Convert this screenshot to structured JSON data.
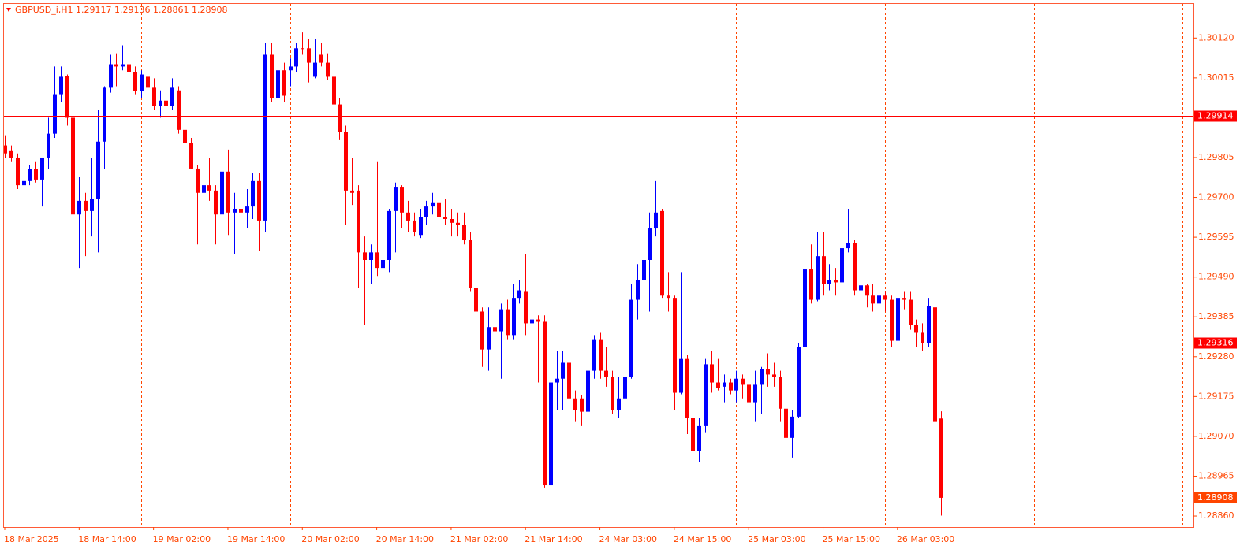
{
  "chart_data": {
    "type": "candlestick",
    "title": "GBPUSD_i,H1  1.29117 1.29136 1.28861 1.28908",
    "up_color": "#0000ff",
    "down_color": "#ff0000",
    "level_color": "#ff0000",
    "ylim": [
      1.28831,
      1.30212
    ],
    "yticks": [
      {
        "value": 1.3012,
        "label": "1.30120"
      },
      {
        "value": 1.30015,
        "label": "1.30015"
      },
      {
        "value": 1.29805,
        "label": "1.29805"
      },
      {
        "value": 1.297,
        "label": "1.29700"
      },
      {
        "value": 1.29595,
        "label": "1.29595"
      },
      {
        "value": 1.2949,
        "label": "1.29490"
      },
      {
        "value": 1.29385,
        "label": "1.29385"
      },
      {
        "value": 1.2928,
        "label": "1.29280"
      },
      {
        "value": 1.29175,
        "label": "1.29175"
      },
      {
        "value": 1.2907,
        "label": "1.29070"
      },
      {
        "value": 1.28965,
        "label": "1.28965"
      },
      {
        "value": 1.2886,
        "label": "1.28860"
      }
    ],
    "levels": [
      {
        "value": 1.29914,
        "label": "1.29914"
      },
      {
        "value": 1.29316,
        "label": "1.29316"
      }
    ],
    "price_label": {
      "value": 1.28908,
      "label": "1.28908"
    },
    "xtick_labels": [
      "18 Mar 2025",
      "18 Mar 14:00",
      "19 Mar 02:00",
      "19 Mar 14:00",
      "20 Mar 02:00",
      "20 Mar 14:00",
      "21 Mar 02:00",
      "21 Mar 14:00",
      "24 Mar 03:00",
      "24 Mar 15:00",
      "25 Mar 03:00",
      "25 Mar 15:00",
      "26 Mar 03:00"
    ],
    "values": [
      [
        1.29837,
        1.29864,
        1.29805,
        1.29816
      ],
      [
        1.29822,
        1.29837,
        1.29795,
        1.29805
      ],
      [
        1.29805,
        1.29816,
        1.29722,
        1.29732
      ],
      [
        1.29732,
        1.29764,
        1.29705,
        1.29743
      ],
      [
        1.29743,
        1.29785,
        1.29732,
        1.29774
      ],
      [
        1.29774,
        1.29795,
        1.29739,
        1.29747
      ],
      [
        1.29747,
        1.29805,
        1.29676,
        1.29805
      ],
      [
        1.29805,
        1.2991,
        1.29774,
        1.29868
      ],
      [
        1.29868,
        1.30045,
        1.29857,
        1.29972
      ],
      [
        1.29972,
        1.30045,
        1.29951,
        1.30018
      ],
      [
        1.3002,
        1.30024,
        1.29889,
        1.2991
      ],
      [
        1.2991,
        1.2992,
        1.29643,
        1.29655
      ],
      [
        1.29655,
        1.29753,
        1.29514,
        1.29691
      ],
      [
        1.29691,
        1.29712,
        1.29545,
        1.29664
      ],
      [
        1.29664,
        1.29805,
        1.29597,
        1.29697
      ],
      [
        1.29697,
        1.2993,
        1.29555,
        1.29847
      ],
      [
        1.29847,
        1.29993,
        1.29774,
        1.29989
      ],
      [
        1.29989,
        1.30076,
        1.29976,
        1.30051
      ],
      [
        1.30051,
        1.3008,
        1.29993,
        1.30045
      ],
      [
        1.30045,
        1.30101,
        1.30035,
        1.30051
      ],
      [
        1.30051,
        1.30072,
        1.29997,
        1.3003
      ],
      [
        1.3003,
        1.30045,
        1.29972,
        1.2998
      ],
      [
        1.2998,
        1.30035,
        1.29962,
        1.30024
      ],
      [
        1.30018,
        1.3003,
        1.29972,
        1.29989
      ],
      [
        1.29989,
        1.30014,
        1.2993,
        1.29941
      ],
      [
        1.29941,
        1.29982,
        1.2991,
        1.29955
      ],
      [
        1.29955,
        1.30014,
        1.29926,
        1.29941
      ],
      [
        1.29941,
        1.30014,
        1.2993,
        1.29989
      ],
      [
        1.29982,
        1.29993,
        1.29868,
        1.29878
      ],
      [
        1.29878,
        1.2991,
        1.29826,
        1.29843
      ],
      [
        1.29843,
        1.29857,
        1.29774,
        1.29776
      ],
      [
        1.29776,
        1.29785,
        1.29576,
        1.29712
      ],
      [
        1.29712,
        1.29816,
        1.2967,
        1.29732
      ],
      [
        1.29732,
        1.29805,
        1.29691,
        1.29718
      ],
      [
        1.29718,
        1.29732,
        1.29576,
        1.29655
      ],
      [
        1.29655,
        1.29826,
        1.29639,
        1.29768
      ],
      [
        1.29768,
        1.29826,
        1.29601,
        1.2966
      ],
      [
        1.2966,
        1.29712,
        1.29551,
        1.2967
      ],
      [
        1.2967,
        1.29691,
        1.29628,
        1.2966
      ],
      [
        1.2966,
        1.29722,
        1.29618,
        1.29676
      ],
      [
        1.29676,
        1.29764,
        1.29643,
        1.29743
      ],
      [
        1.29743,
        1.29764,
        1.2956,
        1.29639
      ],
      [
        1.29639,
        1.30107,
        1.29608,
        1.30076
      ],
      [
        1.30076,
        1.30107,
        1.29951,
        1.29962
      ],
      [
        1.29962,
        1.30072,
        1.29941,
        1.30035
      ],
      [
        1.30035,
        1.30055,
        1.29951,
        1.29968
      ],
      [
        1.30035,
        1.30066,
        1.29993,
        1.30045
      ],
      [
        1.30045,
        1.30107,
        1.3003,
        1.30093
      ],
      [
        1.30093,
        1.30135,
        1.30076,
        1.30091
      ],
      [
        1.30093,
        1.30118,
        1.30003,
        1.30055
      ],
      [
        1.30018,
        1.30118,
        1.30014,
        1.30055
      ],
      [
        1.30076,
        1.30107,
        1.30045,
        1.30055
      ],
      [
        1.30055,
        1.3008,
        1.3001,
        1.30018
      ],
      [
        1.30018,
        1.30035,
        1.2991,
        1.29945
      ],
      [
        1.29945,
        1.29962,
        1.29851,
        1.29872
      ],
      [
        1.29872,
        1.29889,
        1.29628,
        1.29718
      ],
      [
        1.29718,
        1.29805,
        1.2968,
        1.29712
      ],
      [
        1.29718,
        1.29732,
        1.29462,
        1.29555
      ],
      [
        1.29555,
        1.29597,
        1.29364,
        1.29535
      ],
      [
        1.29535,
        1.29576,
        1.29472,
        1.29555
      ],
      [
        1.29555,
        1.29795,
        1.29493,
        1.29514
      ],
      [
        1.29514,
        1.29597,
        1.29364,
        1.29535
      ],
      [
        1.29535,
        1.2967,
        1.29503,
        1.29664
      ],
      [
        1.29664,
        1.29739,
        1.29555,
        1.29728
      ],
      [
        1.29728,
        1.29732,
        1.29618,
        1.2966
      ],
      [
        1.2966,
        1.29691,
        1.29608,
        1.29639
      ],
      [
        1.29639,
        1.2966,
        1.29597,
        1.29608
      ],
      [
        1.29601,
        1.2967,
        1.29593,
        1.29649
      ],
      [
        1.29649,
        1.29691,
        1.29628,
        1.29676
      ],
      [
        1.29676,
        1.29712,
        1.29655,
        1.29685
      ],
      [
        1.29685,
        1.29701,
        1.29618,
        1.29649
      ],
      [
        1.29649,
        1.29697,
        1.29628,
        1.29643
      ],
      [
        1.29643,
        1.2967,
        1.29597,
        1.29633
      ],
      [
        1.29633,
        1.2966,
        1.29597,
        1.29628
      ],
      [
        1.29628,
        1.2966,
        1.29576,
        1.29587
      ],
      [
        1.29587,
        1.29608,
        1.29451,
        1.29462
      ],
      [
        1.29462,
        1.29472,
        1.29378,
        1.29399
      ],
      [
        1.29399,
        1.2941,
        1.29253,
        1.29299
      ],
      [
        1.29299,
        1.2941,
        1.29243,
        1.29358
      ],
      [
        1.29358,
        1.29451,
        1.29305,
        1.29347
      ],
      [
        1.29347,
        1.2942,
        1.29222,
        1.29405
      ],
      [
        1.29405,
        1.2943,
        1.29326,
        1.29337
      ],
      [
        1.29337,
        1.29472,
        1.29326,
        1.29435
      ],
      [
        1.29435,
        1.29482,
        1.2942,
        1.29455
      ],
      [
        1.29451,
        1.29551,
        1.29337,
        1.29368
      ],
      [
        1.29368,
        1.29399,
        1.29347,
        1.29378
      ],
      [
        1.29378,
        1.29389,
        1.29212,
        1.29372
      ],
      [
        1.29372,
        1.29389,
        1.28935,
        1.28941
      ],
      [
        1.28941,
        1.29222,
        1.28878,
        1.29212
      ],
      [
        1.29212,
        1.29295,
        1.29139,
        1.29222
      ],
      [
        1.29222,
        1.29295,
        1.29139,
        1.29264
      ],
      [
        1.29264,
        1.29274,
        1.29139,
        1.2917
      ],
      [
        1.2917,
        1.29191,
        1.29108,
        1.29139
      ],
      [
        1.2917,
        1.2918,
        1.29097,
        1.29135
      ],
      [
        1.29135,
        1.29253,
        1.29118,
        1.29243
      ],
      [
        1.29243,
        1.29337,
        1.29222,
        1.29326
      ],
      [
        1.29326,
        1.29343,
        1.29222,
        1.29243
      ],
      [
        1.29243,
        1.29305,
        1.29201,
        1.29226
      ],
      [
        1.29226,
        1.29243,
        1.29128,
        1.29139
      ],
      [
        1.29139,
        1.29226,
        1.29118,
        1.2917
      ],
      [
        1.2917,
        1.29243,
        1.29128,
        1.29226
      ],
      [
        1.29226,
        1.29472,
        1.29222,
        1.2943
      ],
      [
        1.2943,
        1.29524,
        1.29378,
        1.29482
      ],
      [
        1.29482,
        1.29587,
        1.2943,
        1.29535
      ],
      [
        1.29535,
        1.2966,
        1.29399,
        1.29618
      ],
      [
        1.29618,
        1.29743,
        1.29597,
        1.2966
      ],
      [
        1.29664,
        1.2967,
        1.29435,
        1.29441
      ],
      [
        1.29441,
        1.29503,
        1.29399,
        1.29435
      ],
      [
        1.29435,
        1.29441,
        1.29139,
        1.29185
      ],
      [
        1.29185,
        1.29503,
        1.29181,
        1.29274
      ],
      [
        1.29274,
        1.29285,
        1.29076,
        1.29118
      ],
      [
        1.29118,
        1.29128,
        1.28956,
        1.29031
      ],
      [
        1.29031,
        1.29118,
        1.29003,
        1.29097
      ],
      [
        1.29097,
        1.29274,
        1.29081,
        1.2926
      ],
      [
        1.2926,
        1.29295,
        1.29185,
        1.29212
      ],
      [
        1.29212,
        1.29274,
        1.29191,
        1.29197
      ],
      [
        1.29201,
        1.29233,
        1.2916,
        1.29212
      ],
      [
        1.29212,
        1.29222,
        1.29181,
        1.29191
      ],
      [
        1.29191,
        1.29243,
        1.2916,
        1.29222
      ],
      [
        1.29222,
        1.29233,
        1.2917,
        1.29206
      ],
      [
        1.29206,
        1.29222,
        1.29122,
        1.2916
      ],
      [
        1.2916,
        1.29243,
        1.29108,
        1.29206
      ],
      [
        1.29206,
        1.29253,
        1.29128,
        1.29247
      ],
      [
        1.29247,
        1.29289,
        1.29201,
        1.29233
      ],
      [
        1.29233,
        1.29264,
        1.29201,
        1.29226
      ],
      [
        1.29226,
        1.29243,
        1.29108,
        1.29143
      ],
      [
        1.29143,
        1.29149,
        1.29035,
        1.29066
      ],
      [
        1.29066,
        1.29139,
        1.29014,
        1.29122
      ],
      [
        1.29122,
        1.29316,
        1.29118,
        1.29305
      ],
      [
        1.29305,
        1.29514,
        1.29295,
        1.2951
      ],
      [
        1.2951,
        1.29576,
        1.2942,
        1.2943
      ],
      [
        1.2943,
        1.29608,
        1.29426,
        1.29545
      ],
      [
        1.29545,
        1.29608,
        1.29441,
        1.29472
      ],
      [
        1.29472,
        1.29524,
        1.29455,
        1.29482
      ],
      [
        1.29482,
        1.29514,
        1.29441,
        1.29476
      ],
      [
        1.29476,
        1.29597,
        1.29462,
        1.29566
      ],
      [
        1.29566,
        1.2967,
        1.29555,
        1.2958
      ],
      [
        1.2958,
        1.29587,
        1.29441,
        1.29455
      ],
      [
        1.29455,
        1.29482,
        1.2943,
        1.29468
      ],
      [
        1.29468,
        1.29472,
        1.2941,
        1.29441
      ],
      [
        1.29441,
        1.29472,
        1.29399,
        1.2942
      ],
      [
        1.2942,
        1.29482,
        1.29405,
        1.29441
      ],
      [
        1.29441,
        1.29451,
        1.29399,
        1.2943
      ],
      [
        1.2943,
        1.29441,
        1.29305,
        1.29322
      ],
      [
        1.29322,
        1.29441,
        1.2926,
        1.29435
      ],
      [
        1.29435,
        1.29451,
        1.29405,
        1.2943
      ],
      [
        1.2943,
        1.29451,
        1.29351,
        1.29364
      ],
      [
        1.29364,
        1.29378,
        1.29305,
        1.29343
      ],
      [
        1.29343,
        1.29368,
        1.29295,
        1.29316
      ],
      [
        1.29316,
        1.29435,
        1.29305,
        1.29414
      ],
      [
        1.2941,
        1.29414,
        1.29031,
        1.29108
      ],
      [
        1.29117,
        1.29136,
        1.28861,
        1.28908
      ]
    ]
  }
}
